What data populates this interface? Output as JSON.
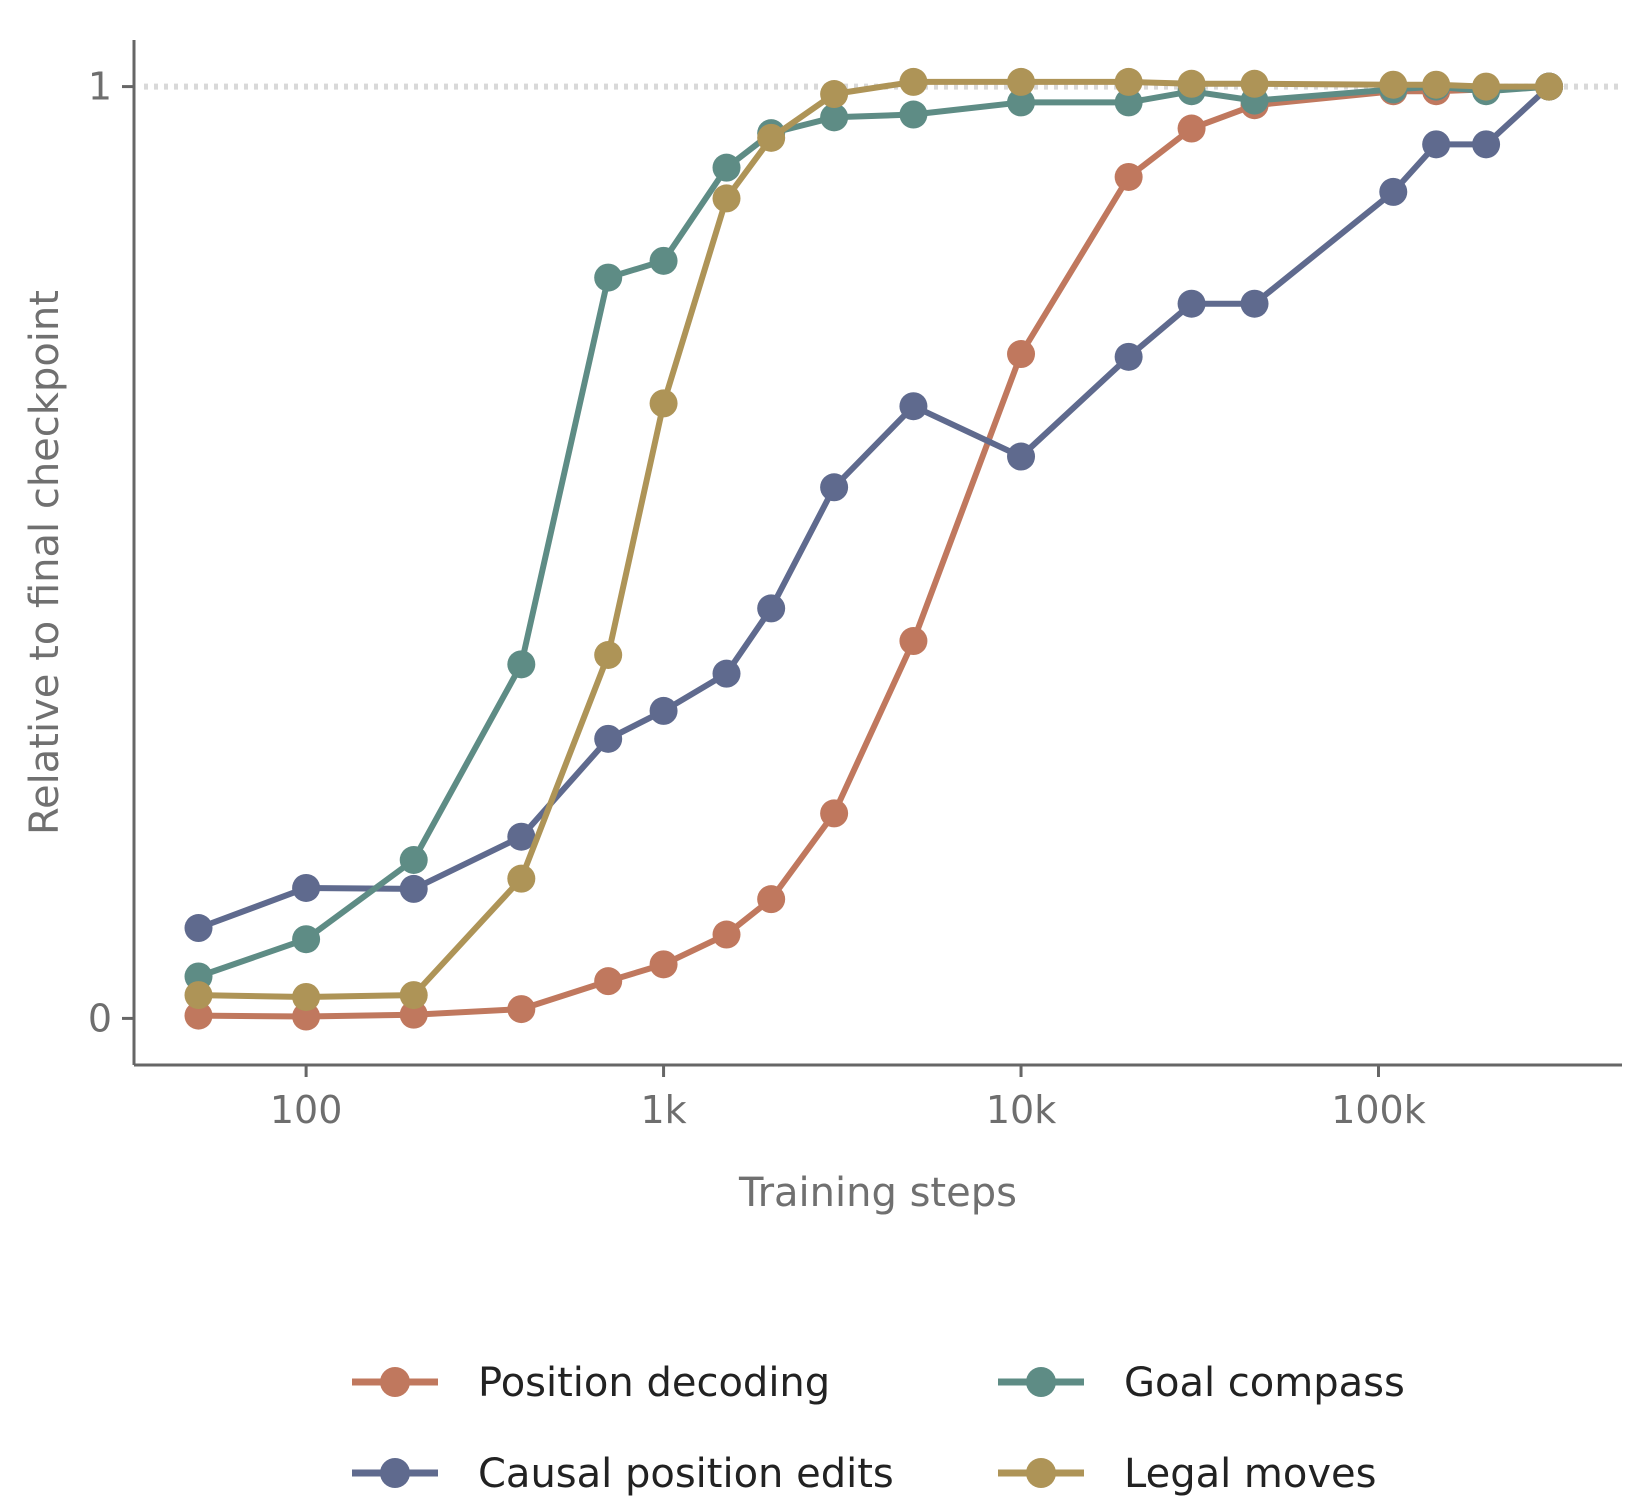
{
  "chart_data": {
    "type": "line",
    "xlabel": "Training steps",
    "ylabel": "Relative to final checkpoint",
    "x_scale": "log",
    "xlim": [
      33,
      480000
    ],
    "ylim": [
      -0.05,
      1.05
    ],
    "x_ticks": [
      {
        "value": 100,
        "label": "100"
      },
      {
        "value": 1000,
        "label": "1k"
      },
      {
        "value": 10000,
        "label": "10k"
      },
      {
        "value": 100000,
        "label": "100k"
      }
    ],
    "y_ticks": [
      {
        "value": 0,
        "label": "0"
      },
      {
        "value": 1,
        "label": "1"
      }
    ],
    "reference_line": {
      "y": 1,
      "style": "dotted",
      "color": "#d9d9d9"
    },
    "grid": false,
    "legend_position": "bottom",
    "x": [
      50,
      100,
      200,
      400,
      700,
      1000,
      1500,
      2000,
      3000,
      5000,
      10000,
      20000,
      30000,
      45000,
      110000,
      145000,
      200000,
      300000
    ],
    "series": [
      {
        "name": "Position decoding",
        "color": "#c0785e",
        "values": [
          0.003,
          0.002,
          0.004,
          0.01,
          0.04,
          0.058,
          0.09,
          0.128,
          0.22,
          0.405,
          0.713,
          0.903,
          0.955,
          0.98,
          0.995,
          0.995,
          0.997,
          1.0
        ]
      },
      {
        "name": "Causal position edits",
        "color": "#5f6a8e",
        "values": [
          0.097,
          0.14,
          0.139,
          0.195,
          0.3,
          0.33,
          0.37,
          0.44,
          0.57,
          0.657,
          0.603,
          0.71,
          0.767,
          0.767,
          0.887,
          0.938,
          0.938,
          1.0
        ]
      },
      {
        "name": "Goal compass",
        "color": "#5e8c85",
        "values": [
          0.045,
          0.085,
          0.17,
          0.38,
          0.795,
          0.813,
          0.913,
          0.95,
          0.967,
          0.97,
          0.983,
          0.983,
          0.995,
          0.985,
          0.997,
          1.0,
          0.995,
          1.0
        ]
      },
      {
        "name": "Legal moves",
        "color": "#ae9457",
        "values": [
          0.025,
          0.023,
          0.025,
          0.15,
          0.39,
          0.66,
          0.88,
          0.945,
          0.992,
          1.005,
          1.005,
          1.005,
          1.003,
          1.003,
          1.002,
          1.002,
          1.0,
          1.0
        ]
      }
    ]
  }
}
